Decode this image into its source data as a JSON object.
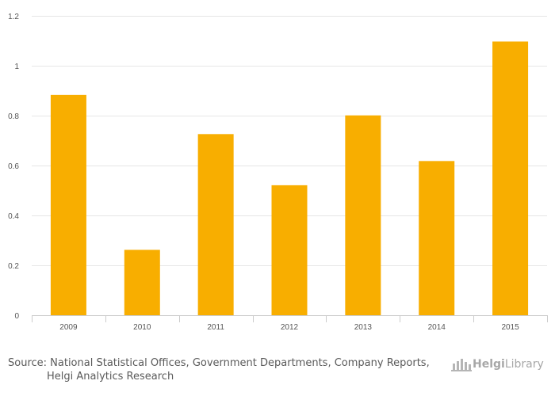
{
  "chart_data": {
    "type": "bar",
    "title": "",
    "xlabel": "",
    "ylabel": "",
    "categories": [
      "2009",
      "2010",
      "2011",
      "2012",
      "2013",
      "2014",
      "2015"
    ],
    "values": [
      0.883,
      0.262,
      0.726,
      0.521,
      0.801,
      0.618,
      1.097
    ],
    "ylim": [
      0,
      1.2
    ],
    "yticks": [
      "0",
      "0.2",
      "0.4",
      "0.6",
      "0.8",
      "1",
      "1.2"
    ],
    "grid": true,
    "bar_color": "#F8AE00"
  },
  "source": {
    "line1": "Source: National Statistical Offices, Government Departments, Company Reports,",
    "line2": "Helgi Analytics Research"
  },
  "logo": {
    "brand": "Helgi",
    "suffix": "Library"
  }
}
